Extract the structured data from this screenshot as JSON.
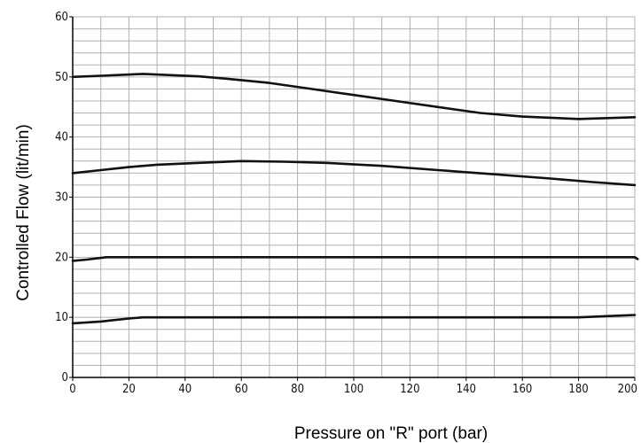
{
  "chart_data": {
    "type": "line",
    "title": "",
    "xlabel": "Pressure on \"R\" port (bar)",
    "ylabel": "Controlled Flow (lit/min)",
    "xlim": [
      0,
      200
    ],
    "ylim": [
      0,
      60
    ],
    "x_ticks": [
      "0",
      "20",
      "40",
      "60",
      "80",
      "100",
      "120",
      "140",
      "160",
      "180",
      "200"
    ],
    "y_ticks": [
      "0",
      "10",
      "20",
      "30",
      "40",
      "50",
      "60"
    ],
    "grid": true,
    "line_color": "#111111",
    "grid_color": "#b0b0b0",
    "series": [
      {
        "points": [
          [
            0,
            50
          ],
          [
            10,
            50.2
          ],
          [
            25,
            50.5
          ],
          [
            45,
            50.1
          ],
          [
            55,
            49.7
          ],
          [
            70,
            49
          ],
          [
            85,
            48
          ],
          [
            100,
            47
          ],
          [
            115,
            46
          ],
          [
            130,
            45
          ],
          [
            145,
            44
          ],
          [
            160,
            43.4
          ],
          [
            180,
            43
          ],
          [
            200,
            43.3
          ]
        ]
      },
      {
        "points": [
          [
            0,
            34
          ],
          [
            10,
            34.5
          ],
          [
            20,
            35
          ],
          [
            30,
            35.4
          ],
          [
            45,
            35.7
          ],
          [
            60,
            36
          ],
          [
            75,
            35.9
          ],
          [
            90,
            35.7
          ],
          [
            110,
            35.2
          ],
          [
            130,
            34.5
          ],
          [
            150,
            33.8
          ],
          [
            170,
            33.1
          ],
          [
            185,
            32.5
          ],
          [
            200,
            32
          ]
        ]
      },
      {
        "points": [
          [
            0,
            19.4
          ],
          [
            5,
            19.6
          ],
          [
            12,
            20
          ],
          [
            200,
            20
          ],
          [
            201,
            19.7
          ]
        ]
      },
      {
        "points": [
          [
            0,
            9
          ],
          [
            10,
            9.3
          ],
          [
            20,
            9.8
          ],
          [
            25,
            10
          ],
          [
            180,
            10
          ],
          [
            190,
            10.2
          ],
          [
            200,
            10.4
          ]
        ]
      }
    ]
  }
}
